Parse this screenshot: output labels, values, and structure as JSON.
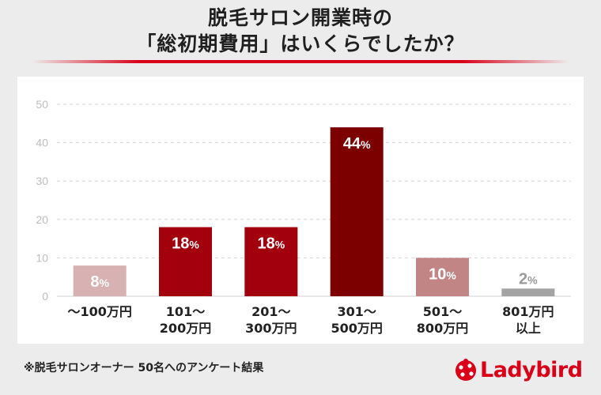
{
  "title": {
    "line1": "脱毛サロン開業時の",
    "line2": "「総初期費用」はいくらでしたか？"
  },
  "chart_data": {
    "type": "bar",
    "categories": [
      [
        "〜100万円"
      ],
      [
        "101〜",
        "200万円"
      ],
      [
        "201〜",
        "300万円"
      ],
      [
        "301〜",
        "500万円"
      ],
      [
        "501〜",
        "800万円"
      ],
      [
        "801万円",
        "以上"
      ]
    ],
    "values": [
      8,
      18,
      18,
      44,
      10,
      2
    ],
    "value_suffix": "%",
    "bar_colors": [
      "#d8b2b2",
      "#a3000e",
      "#a3000e",
      "#7d0000",
      "#c28585",
      "#a3a3a3"
    ],
    "yticks": [
      0,
      10,
      20,
      30,
      40,
      50
    ],
    "ylim": [
      0,
      50
    ],
    "grid": true
  },
  "footnote": "※脱毛サロンオーナー 50名へのアンケート結果",
  "brand": {
    "name": "Ladybird",
    "color": "#d90018"
  }
}
